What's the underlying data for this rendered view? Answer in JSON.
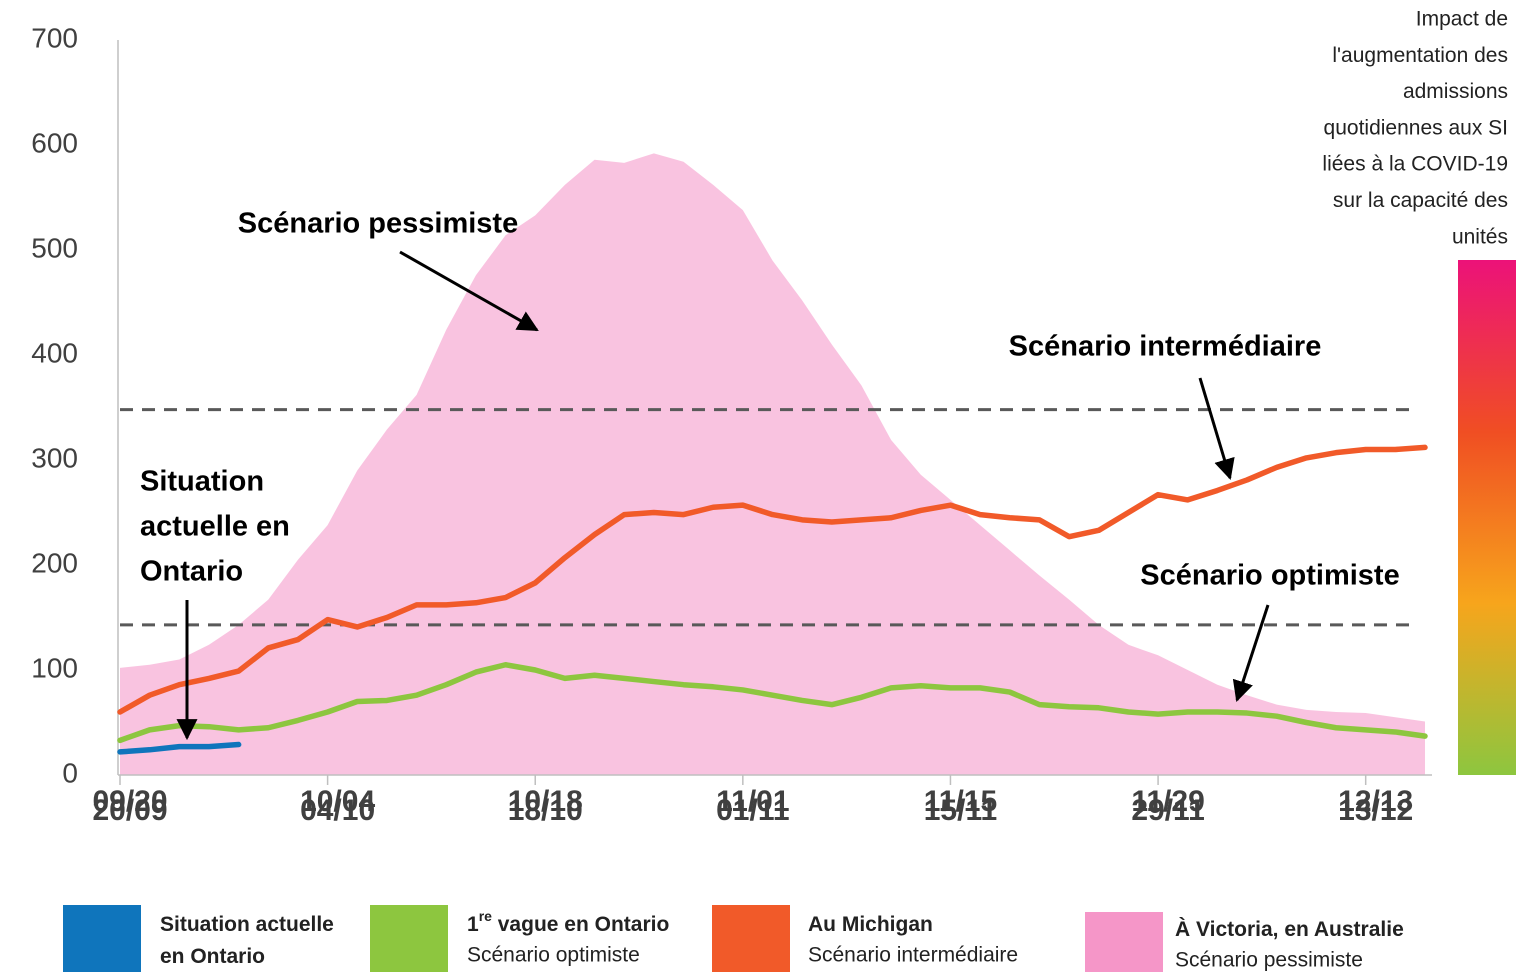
{
  "chart_data": {
    "type": "line",
    "categories": [
      "09/20",
      "09/22",
      "09/24",
      "09/26",
      "09/28",
      "09/30",
      "10/02",
      "10/04",
      "10/06",
      "10/08",
      "10/10",
      "10/12",
      "10/14",
      "10/16",
      "10/18",
      "10/20",
      "10/22",
      "10/24",
      "10/26",
      "10/28",
      "10/30",
      "11/01",
      "11/03",
      "11/05",
      "11/07",
      "11/09",
      "11/11",
      "11/13",
      "11/15",
      "11/17",
      "11/19",
      "11/21",
      "11/23",
      "11/25",
      "11/27",
      "11/29",
      "12/01",
      "12/03",
      "12/05",
      "12/07",
      "12/09",
      "12/11",
      "12/13",
      "12/15",
      "12/17"
    ],
    "xticks": [
      "09/20",
      "10/04",
      "10/18",
      "11/01",
      "11/15",
      "11/29",
      "12/13"
    ],
    "xticks_alt": [
      "20/09",
      "04/10",
      "18/10",
      "01/11",
      "15/11",
      "29/11",
      "13/12"
    ],
    "ylim": [
      0,
      700
    ],
    "yticks": [
      0,
      100,
      200,
      300,
      400,
      500,
      600,
      700
    ],
    "reference_lines": [
      348,
      143
    ],
    "series": [
      {
        "name_lines": [
          [
            "Situation actuelle"
          ],
          [
            "en Ontario"
          ]
        ],
        "color": "#0f75bc",
        "kind": "line",
        "values": [
          22,
          24,
          27,
          27,
          29,
          null,
          null,
          null,
          null,
          null,
          null,
          null,
          null,
          null,
          null,
          null,
          null,
          null,
          null,
          null,
          null,
          null,
          null,
          null,
          null,
          null,
          null,
          null,
          null,
          null,
          null,
          null,
          null,
          null,
          null,
          null,
          null,
          null,
          null,
          null,
          null,
          null,
          null,
          null,
          null
        ]
      },
      {
        "name_lines": [
          [
            "1",
            "re",
            " vague en Ontario"
          ]
        ],
        "scenario": "Scénario optimiste",
        "color": "#8dc63f",
        "kind": "line",
        "values": [
          33,
          43,
          47,
          46,
          43,
          45,
          52,
          60,
          70,
          71,
          76,
          86,
          98,
          105,
          100,
          92,
          95,
          92,
          89,
          86,
          84,
          81,
          76,
          71,
          67,
          74,
          83,
          85,
          83,
          83,
          79,
          67,
          65,
          64,
          60,
          58,
          60,
          60,
          59,
          56,
          50,
          45,
          43,
          41,
          37
        ]
      },
      {
        "name_lines": [
          [
            "Au Michigan"
          ]
        ],
        "scenario": "Scénario intermédiaire",
        "color": "#f15a29",
        "kind": "line",
        "values": [
          60,
          76,
          86,
          92,
          99,
          121,
          129,
          148,
          141,
          150,
          162,
          162,
          164,
          169,
          183,
          207,
          229,
          248,
          250,
          248,
          255,
          257,
          248,
          243,
          241,
          243,
          245,
          252,
          257,
          248,
          245,
          243,
          227,
          233,
          250,
          267,
          262,
          271,
          281,
          293,
          302,
          307,
          310,
          310,
          312
        ]
      },
      {
        "name_lines": [
          [
            "À Victoria, en Australie"
          ]
        ],
        "scenario": "Scénario pessimiste",
        "color": "#f596c8",
        "kind": "area",
        "values": [
          102,
          105,
          110,
          124,
          143,
          167,
          205,
          238,
          290,
          329,
          362,
          424,
          476,
          514,
          533,
          562,
          586,
          583,
          592,
          584,
          562,
          538,
          490,
          452,
          410,
          371,
          319,
          286,
          262,
          238,
          214,
          190,
          167,
          143,
          124,
          114,
          100,
          86,
          76,
          67,
          62,
          60,
          59,
          55,
          51
        ]
      }
    ],
    "annotations": [
      {
        "lines": [
          "Scénario pessimiste"
        ]
      },
      {
        "lines": [
          "Scénario intermédiaire"
        ]
      },
      {
        "lines": [
          "Situation",
          "actuelle en",
          "Ontario"
        ]
      },
      {
        "lines": [
          "Scénario optimiste"
        ]
      }
    ],
    "colorbar": {
      "title_lines": [
        "Impact de",
        "l'augmentation des",
        "admissions",
        "quotidiennes aux SI",
        "liées à la COVID-19",
        "sur la capacité des",
        "unités"
      ],
      "colors": [
        "#ec1279",
        "#f04e23",
        "#f7a51c",
        "#8dc63f"
      ]
    }
  }
}
